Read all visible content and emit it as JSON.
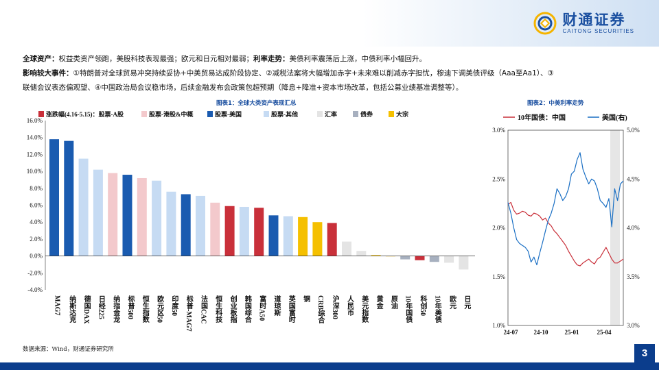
{
  "header": {
    "logo_cn": "财通证券",
    "logo_en": "CAITONG SECURITIES"
  },
  "summary": {
    "line1_label_a": "全球资产：",
    "line1_text_a": "权益类资产领跑，美股科技表现最强；欧元和日元相对最弱；",
    "line1_label_b": "利率走势：",
    "line1_text_b": "美债利率震荡后上涨，中债利率小幅回升。",
    "line2_label": "影响较大事件：",
    "line2_text": "①特朗普对全球贸易冲突持续妥协+中美贸易达成阶段协定、②减税法案将大幅增加赤字+未来难以削减赤字担忧，穆迪下调美债评级（Aaa至Aa1）、③",
    "line3_text": "联储会议表态偏观望、④中国政治局会议稳市场，后续金融发布会政策包超预期（降息+降准+资本市场改革，包括公募业绩基准调整等）。"
  },
  "figure1_title": "图表1：全球大类资产表现汇总",
  "figure2_title": "图表2：中美利率走势",
  "colors": {
    "a_share": "#c9303a",
    "hk": "#f3c9cc",
    "us": "#1a5bb0",
    "other": "#c6dbf3",
    "fx": "#e4e4e4",
    "bond": "#a7b0bf",
    "commodity": "#f5c000",
    "cn_line": "#c9303a",
    "us_line": "#1a6fc4",
    "shade": "#e6e6e6"
  },
  "chart_data": [
    {
      "type": "bar",
      "legend": [
        {
          "key": "a_share",
          "label": "涨跌幅(4.16-5.15)：股票-A股"
        },
        {
          "key": "hk",
          "label": "股票-港股&中概"
        },
        {
          "key": "us",
          "label": "股票-美国"
        },
        {
          "key": "other",
          "label": "股票-其他"
        },
        {
          "key": "fx",
          "label": "汇率"
        },
        {
          "key": "bond",
          "label": "债券"
        },
        {
          "key": "commodity",
          "label": "大宗"
        }
      ],
      "legend_placement": "top",
      "ylim": [
        -4.0,
        16.0
      ],
      "yticks": [
        "16.0%",
        "14.0%",
        "12.0%",
        "10.0%",
        "8.0%",
        "6.0%",
        "4.0%",
        "2.0%",
        "0.0%",
        "-2.0%",
        "-4.0%"
      ],
      "categories": [
        "MAG7",
        "纳斯达克",
        "德国DAX",
        "日经225",
        "纳指金龙",
        "标普500",
        "恒生指数",
        "欧元区50",
        "印度50",
        "标普-MAG7",
        "法国CAC",
        "恒生科技",
        "创业板指",
        "韩国综合",
        "富时A50",
        "道琼斯",
        "英国富时",
        "铜",
        "CRB综合",
        "沪深300",
        "人民币",
        "美元指数",
        "黄金",
        "原油",
        "10年国债",
        "科创50",
        "10年美债",
        "欧元",
        "日元"
      ],
      "values": [
        13.8,
        13.6,
        11.5,
        10.2,
        9.8,
        9.6,
        9.2,
        8.9,
        7.6,
        7.3,
        7.1,
        6.3,
        5.9,
        5.8,
        5.7,
        4.8,
        4.7,
        4.6,
        4.0,
        3.9,
        1.7,
        0.6,
        0.1,
        0.0,
        -0.4,
        -0.5,
        -0.7,
        -0.8,
        -1.6
      ],
      "groups": [
        "us",
        "us",
        "other",
        "other",
        "hk",
        "us",
        "hk",
        "other",
        "other",
        "us",
        "other",
        "hk",
        "a_share",
        "other",
        "a_share",
        "us",
        "other",
        "commodity",
        "commodity",
        "a_share",
        "fx",
        "fx",
        "commodity",
        "commodity",
        "bond",
        "a_share",
        "bond",
        "fx",
        "fx"
      ],
      "grid": false
    },
    {
      "type": "line",
      "legend_placement": "top",
      "series": [
        {
          "name": "10年国债：中国",
          "axis": "left",
          "values": [
            2.24,
            2.26,
            2.18,
            2.14,
            2.15,
            2.17,
            2.16,
            2.13,
            2.12,
            2.15,
            2.14,
            2.12,
            2.08,
            2.1,
            2.05,
            2.02,
            1.97,
            1.94,
            1.9,
            1.86,
            1.82,
            1.76,
            1.71,
            1.66,
            1.62,
            1.61,
            1.64,
            1.66,
            1.68,
            1.65,
            1.63,
            1.68,
            1.7,
            1.75,
            1.8,
            1.74,
            1.68,
            1.64,
            1.64,
            1.66,
            1.68
          ]
        },
        {
          "name": "美国(右)",
          "axis": "right",
          "values": [
            4.26,
            4.15,
            4.0,
            3.88,
            3.84,
            3.82,
            3.8,
            3.76,
            3.65,
            3.7,
            3.62,
            3.74,
            3.85,
            3.97,
            4.08,
            4.15,
            4.25,
            4.4,
            4.35,
            4.28,
            4.32,
            4.4,
            4.55,
            4.58,
            4.7,
            4.77,
            4.6,
            4.52,
            4.45,
            4.5,
            4.48,
            4.4,
            4.28,
            4.25,
            4.21,
            4.3,
            4.01,
            4.4,
            4.28,
            4.45,
            4.48
          ]
        },
        {
          "name": "",
          "axis": "left",
          "values": []
        }
      ],
      "x_ticks": [
        "24-07",
        "24-10",
        "25-01",
        "25-04"
      ],
      "ylim_left": [
        1.0,
        3.0
      ],
      "yticks_left": [
        "3.0%",
        "2.5%",
        "2.0%",
        "1.5%",
        "1.0%"
      ],
      "ylim_right": [
        3.0,
        5.0
      ],
      "yticks_right": [
        "5.0%",
        "4.5%",
        "4.0%",
        "3.5%",
        "3.0%"
      ],
      "shaded_period": "4.16-5.15",
      "grid": false
    }
  ],
  "footer": {
    "source": "数据来源：Wind，财通证券研究所",
    "page_number": "3"
  }
}
